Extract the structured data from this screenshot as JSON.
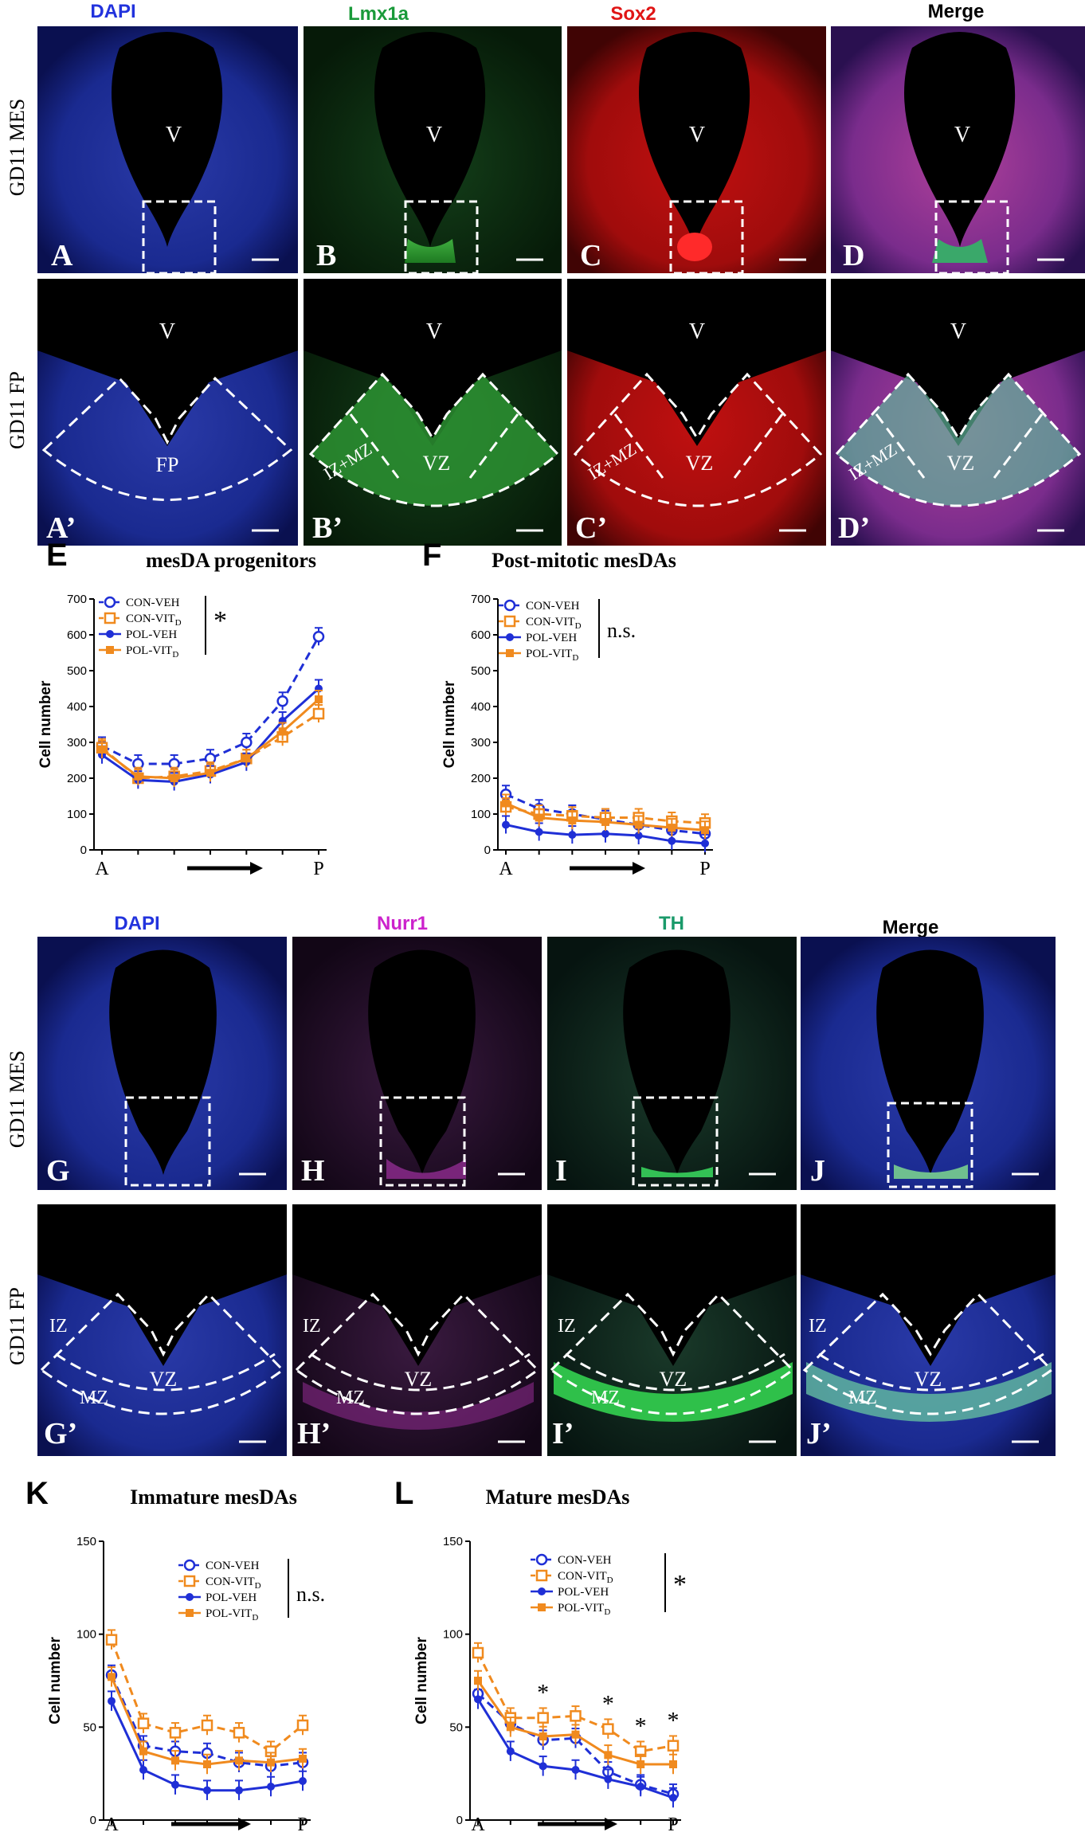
{
  "colors": {
    "con_veh": "#1f2fd6",
    "con_vit": "#f08a1e",
    "pol_veh": "#1f2fd6",
    "pol_vit": "#f08a1e",
    "dapi_title": "#2233dd",
    "lmx1a_title": "#1a9a3a",
    "sox2_title": "#e01515",
    "nurr1_title": "#cc22cc",
    "th_title": "#1a9a6a"
  },
  "top_block": {
    "row_labels": [
      "GD11 MES",
      "GD11 FP"
    ],
    "column_titles": [
      "DAPI",
      "Lmx1a",
      "Sox2",
      "Merge"
    ],
    "panel_letters_row1": [
      "A",
      "B",
      "C",
      "D"
    ],
    "panel_letters_row2": [
      "A’",
      "B’",
      "C’",
      "D’"
    ],
    "ventricle_label": "V",
    "zone_fp": "FP",
    "zone_vz": "VZ",
    "zone_izmz": "IZ+MZ"
  },
  "bottom_block": {
    "row_labels": [
      "GD11 MES",
      "GD11 FP"
    ],
    "column_titles": [
      "DAPI",
      "Nurr1",
      "TH",
      "Merge"
    ],
    "panel_letters_row1": [
      "G",
      "H",
      "I",
      "J"
    ],
    "panel_letters_row2": [
      "G’",
      "H’",
      "I’",
      "J’"
    ],
    "zone_iz": "IZ",
    "zone_vz": "VZ",
    "zone_mz": "MZ"
  },
  "chart_data": [
    {
      "type": "line",
      "panel": "E",
      "title": "mesDA progenitors",
      "ylabel": "Cell number",
      "x_start_label": "A",
      "x_end_label": "P",
      "yticks": [
        0,
        100,
        200,
        300,
        400,
        500,
        600,
        700
      ],
      "ylim": [
        0,
        700
      ],
      "x": [
        1,
        2,
        3,
        4,
        5,
        6,
        7,
        8
      ],
      "series": [
        {
          "name": "CON-VEH",
          "values": [
            290,
            240,
            240,
            255,
            300,
            415,
            595,
            null
          ]
        },
        {
          "name": "CON-VITD",
          "values": [
            285,
            200,
            205,
            220,
            255,
            315,
            380,
            null
          ]
        },
        {
          "name": "POL-VEH",
          "values": [
            265,
            195,
            190,
            210,
            245,
            360,
            450,
            null
          ]
        },
        {
          "name": "POL-VITD",
          "values": [
            280,
            205,
            200,
            215,
            255,
            330,
            420,
            null
          ]
        }
      ],
      "significance": "*"
    },
    {
      "type": "line",
      "panel": "F",
      "title": "Post-mitotic mesDAs",
      "ylabel": "Cell number",
      "x_start_label": "A",
      "x_end_label": "P",
      "yticks": [
        0,
        100,
        200,
        300,
        400,
        500,
        600,
        700
      ],
      "ylim": [
        0,
        700
      ],
      "series": [
        {
          "name": "CON-VEH",
          "values": [
            155,
            115,
            100,
            85,
            70,
            55,
            45
          ]
        },
        {
          "name": "CON-VITD",
          "values": [
            120,
            100,
            95,
            90,
            90,
            80,
            75
          ]
        },
        {
          "name": "POL-VEH",
          "values": [
            70,
            50,
            42,
            45,
            40,
            25,
            18
          ]
        },
        {
          "name": "POL-VITD",
          "values": [
            130,
            90,
            82,
            78,
            70,
            62,
            55
          ]
        }
      ],
      "significance": "n.s."
    },
    {
      "type": "line",
      "panel": "K",
      "title": "Immature mesDAs",
      "ylabel": "Cell number",
      "x_start_label": "A",
      "x_end_label": "P",
      "yticks": [
        0,
        50,
        100,
        150
      ],
      "ylim": [
        0,
        150
      ],
      "series": [
        {
          "name": "CON-VEH",
          "values": [
            78,
            40,
            37,
            36,
            31,
            29,
            31
          ]
        },
        {
          "name": "CON-VITD",
          "values": [
            97,
            52,
            47,
            51,
            47,
            37,
            51
          ]
        },
        {
          "name": "POL-VEH",
          "values": [
            64,
            27,
            19,
            16,
            16,
            18,
            21
          ]
        },
        {
          "name": "POL-VITD",
          "values": [
            77,
            37,
            32,
            30,
            32,
            31,
            33
          ]
        }
      ],
      "significance": "n.s."
    },
    {
      "type": "line",
      "panel": "L",
      "title": "Mature mesDAs",
      "ylabel": "Cell number",
      "x_start_label": "A",
      "x_end_label": "P",
      "yticks": [
        0,
        50,
        100,
        150
      ],
      "ylim": [
        0,
        150
      ],
      "series": [
        {
          "name": "CON-VEH",
          "values": [
            68,
            52,
            43,
            44,
            26,
            19,
            14
          ]
        },
        {
          "name": "CON-VITD",
          "values": [
            90,
            55,
            55,
            56,
            49,
            37,
            40
          ]
        },
        {
          "name": "POL-VEH",
          "values": [
            65,
            37,
            29,
            27,
            22,
            18,
            12
          ]
        },
        {
          "name": "POL-VITD",
          "values": [
            75,
            50,
            45,
            46,
            35,
            30,
            30
          ]
        }
      ],
      "significance": "*",
      "point_stars": "*"
    }
  ],
  "legend": {
    "items": [
      {
        "label": "CON-VEH",
        "sub": ""
      },
      {
        "label": "CON-VIT",
        "sub": "D"
      },
      {
        "label": "POL-VEH",
        "sub": ""
      },
      {
        "label": "POL-VIT",
        "sub": "D"
      }
    ]
  }
}
